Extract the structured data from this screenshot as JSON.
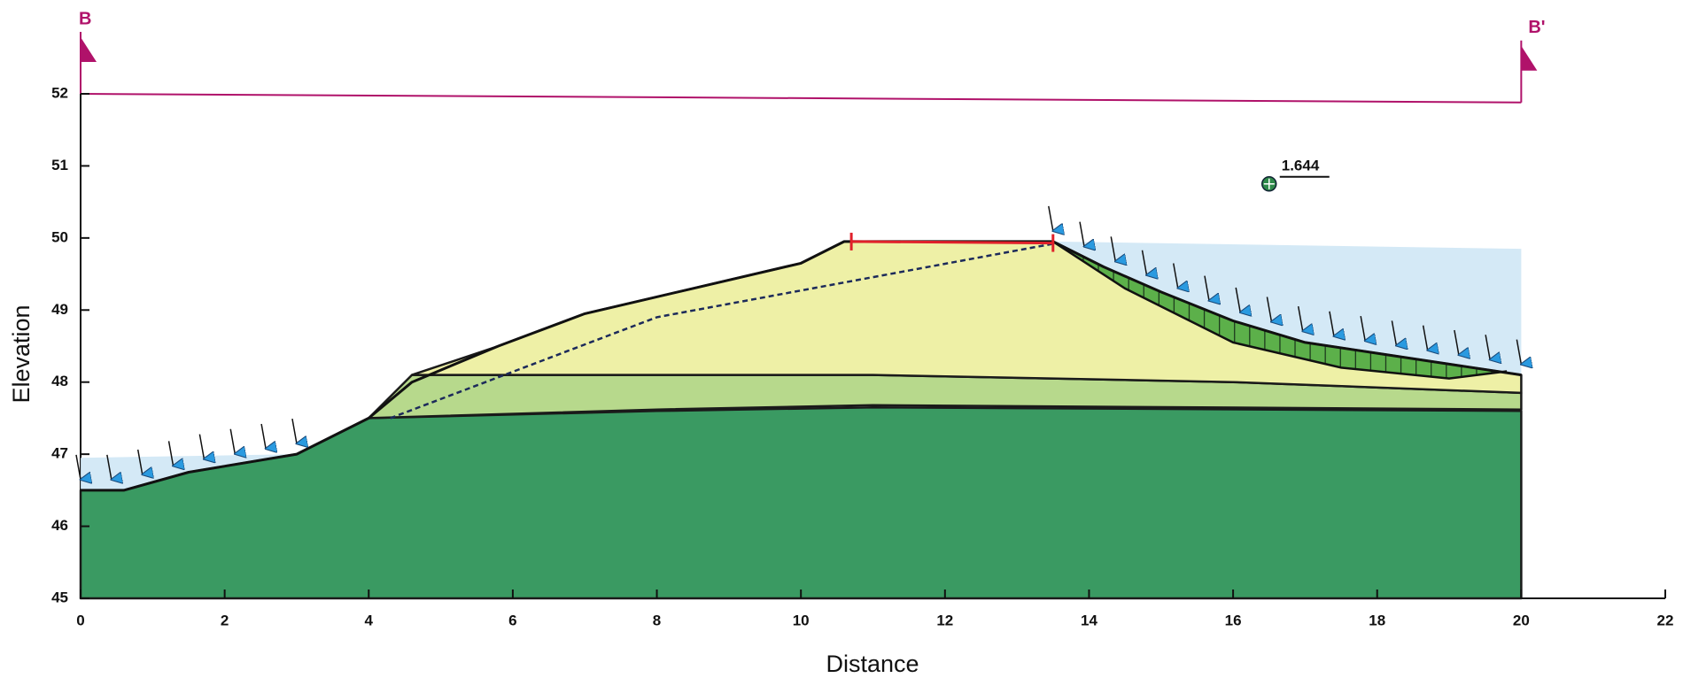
{
  "chart_data": {
    "type": "cross-section",
    "xlabel": "Distance",
    "ylabel": "Elevation",
    "xlim": [
      0,
      22
    ],
    "ylim": [
      45,
      52
    ],
    "xticks": [
      0,
      2,
      4,
      6,
      8,
      10,
      12,
      14,
      16,
      18,
      20,
      22
    ],
    "yticks": [
      45,
      46,
      47,
      48,
      49,
      50,
      51,
      52
    ],
    "section_labels": [
      "B",
      "B'"
    ],
    "section_line": {
      "x": [
        0,
        20
      ],
      "y": [
        52,
        51.88
      ],
      "color": "#b0126a"
    },
    "layers": [
      {
        "color": "#3a9a62",
        "x": [
          0,
          0,
          0.6,
          1.5,
          3,
          4,
          8,
          11,
          20,
          20
        ],
        "y": [
          45,
          46.5,
          46.5,
          46.75,
          47,
          47.5,
          47.6,
          47.65,
          47.6,
          45
        ]
      },
      {
        "color": "#b7d98c",
        "x": [
          4,
          4.6,
          11,
          16,
          20,
          20,
          11,
          8
        ],
        "y": [
          47.5,
          48.1,
          48.1,
          48,
          47.85,
          47.62,
          47.68,
          47.62
        ]
      },
      {
        "color": "#eef0a6",
        "x": [
          4.6,
          5.8,
          7,
          8.5,
          10,
          10.6,
          13.5,
          14.2,
          15,
          16,
          17,
          18,
          19,
          20,
          20,
          16,
          11
        ],
        "y": [
          48.1,
          48.5,
          48.95,
          49.3,
          49.65,
          49.95,
          49.95,
          49.6,
          49.25,
          48.85,
          48.55,
          48.4,
          48.25,
          48.1,
          47.85,
          48,
          48.1
        ]
      }
    ],
    "water": [
      {
        "color": "#cfe7f5",
        "x": [
          0,
          0,
          3,
          1.5,
          0.6
        ],
        "y": [
          46.5,
          46.95,
          47,
          46.75,
          46.5
        ]
      },
      {
        "color": "#cfe7f5",
        "x": [
          13.5,
          20,
          20,
          19,
          18,
          17,
          16,
          15,
          14.2
        ],
        "y": [
          49.95,
          49.85,
          48.1,
          48.25,
          48.4,
          48.55,
          48.85,
          49.25,
          49.6
        ]
      }
    ],
    "ground_surface": {
      "x": [
        0,
        0.6,
        1.5,
        3,
        4,
        4.6,
        5.8,
        7,
        8.5,
        10,
        10.6,
        13.5,
        14.2,
        15,
        16,
        17,
        18,
        19,
        20
      ],
      "y": [
        46.5,
        46.5,
        46.75,
        47,
        47.5,
        48,
        48.5,
        48.95,
        49.3,
        49.65,
        49.95,
        49.95,
        49.6,
        49.25,
        48.85,
        48.55,
        48.4,
        48.25,
        48.1
      ]
    },
    "phreatic_line": {
      "x": [
        4.3,
        8,
        13.5
      ],
      "y": [
        47.5,
        48.9,
        49.92
      ]
    },
    "crest_line": {
      "x": [
        10.7,
        13.5
      ],
      "y": [
        49.95,
        49.93
      ],
      "color": "#e0202a"
    },
    "slip_surface": {
      "color": "#5cb04a",
      "x": [
        13.5,
        14.5,
        16,
        17.5,
        19,
        19.8
      ],
      "y": [
        49.95,
        49.3,
        48.55,
        48.2,
        48.05,
        48.15
      ]
    },
    "slip_center": {
      "x": 16.5,
      "y": 50.75
    },
    "factor_of_safety": 1.644
  }
}
